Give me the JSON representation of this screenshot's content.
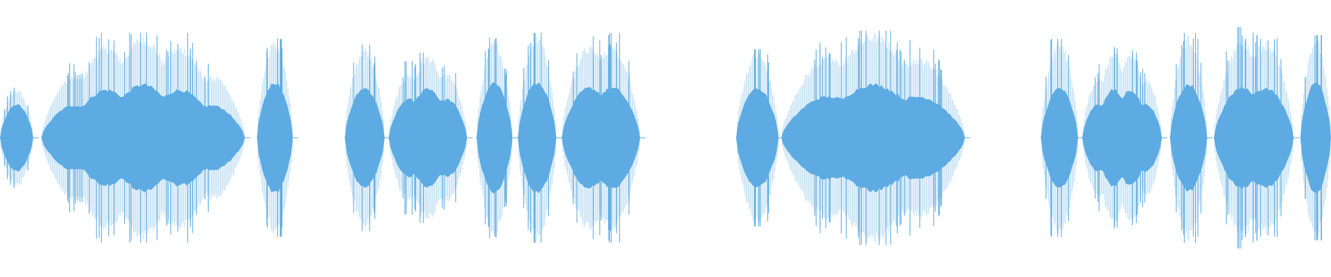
{
  "waveform": {
    "color": "#5dabe2",
    "background": "#ffffff",
    "segments": [
      {
        "name": "segment-1",
        "start": 0.0,
        "end": 0.025,
        "peak": 0.43,
        "core": 0.3,
        "bumps": 1,
        "spikes": 6
      },
      {
        "name": "segment-2",
        "start": 0.031,
        "end": 0.184,
        "peak": 0.9,
        "core": 0.48,
        "bumps": 5,
        "spikes": 30
      },
      {
        "name": "segment-3",
        "start": 0.193,
        "end": 0.22,
        "peak": 0.85,
        "core": 0.5,
        "bumps": 1,
        "spikes": 8
      },
      {
        "name": "segment-4",
        "start": 0.259,
        "end": 0.289,
        "peak": 0.8,
        "core": 0.45,
        "bumps": 1,
        "spikes": 6
      },
      {
        "name": "segment-5",
        "start": 0.292,
        "end": 0.351,
        "peak": 0.73,
        "core": 0.45,
        "bumps": 3,
        "spikes": 12
      },
      {
        "name": "segment-6",
        "start": 0.358,
        "end": 0.385,
        "peak": 0.86,
        "core": 0.5,
        "bumps": 1,
        "spikes": 8
      },
      {
        "name": "segment-7",
        "start": 0.389,
        "end": 0.418,
        "peak": 0.9,
        "core": 0.5,
        "bumps": 1,
        "spikes": 8
      },
      {
        "name": "segment-8",
        "start": 0.422,
        "end": 0.481,
        "peak": 0.9,
        "core": 0.5,
        "bumps": 2,
        "spikes": 16
      },
      {
        "name": "segment-9",
        "start": 0.553,
        "end": 0.585,
        "peak": 0.76,
        "core": 0.45,
        "bumps": 1,
        "spikes": 6
      },
      {
        "name": "segment-10",
        "start": 0.587,
        "end": 0.725,
        "peak": 0.92,
        "core": 0.48,
        "bumps": 3,
        "spikes": 30
      },
      {
        "name": "segment-11",
        "start": 0.782,
        "end": 0.81,
        "peak": 0.85,
        "core": 0.45,
        "bumps": 1,
        "spikes": 6
      },
      {
        "name": "segment-12",
        "start": 0.813,
        "end": 0.873,
        "peak": 0.78,
        "core": 0.45,
        "bumps": 4,
        "spikes": 12
      },
      {
        "name": "segment-13",
        "start": 0.879,
        "end": 0.907,
        "peak": 0.9,
        "core": 0.48,
        "bumps": 1,
        "spikes": 8
      },
      {
        "name": "segment-14",
        "start": 0.912,
        "end": 0.972,
        "peak": 0.95,
        "core": 0.5,
        "bumps": 2,
        "spikes": 18
      },
      {
        "name": "segment-15",
        "start": 0.977,
        "end": 1.0,
        "peak": 0.88,
        "core": 0.5,
        "bumps": 1,
        "spikes": 6
      }
    ]
  }
}
